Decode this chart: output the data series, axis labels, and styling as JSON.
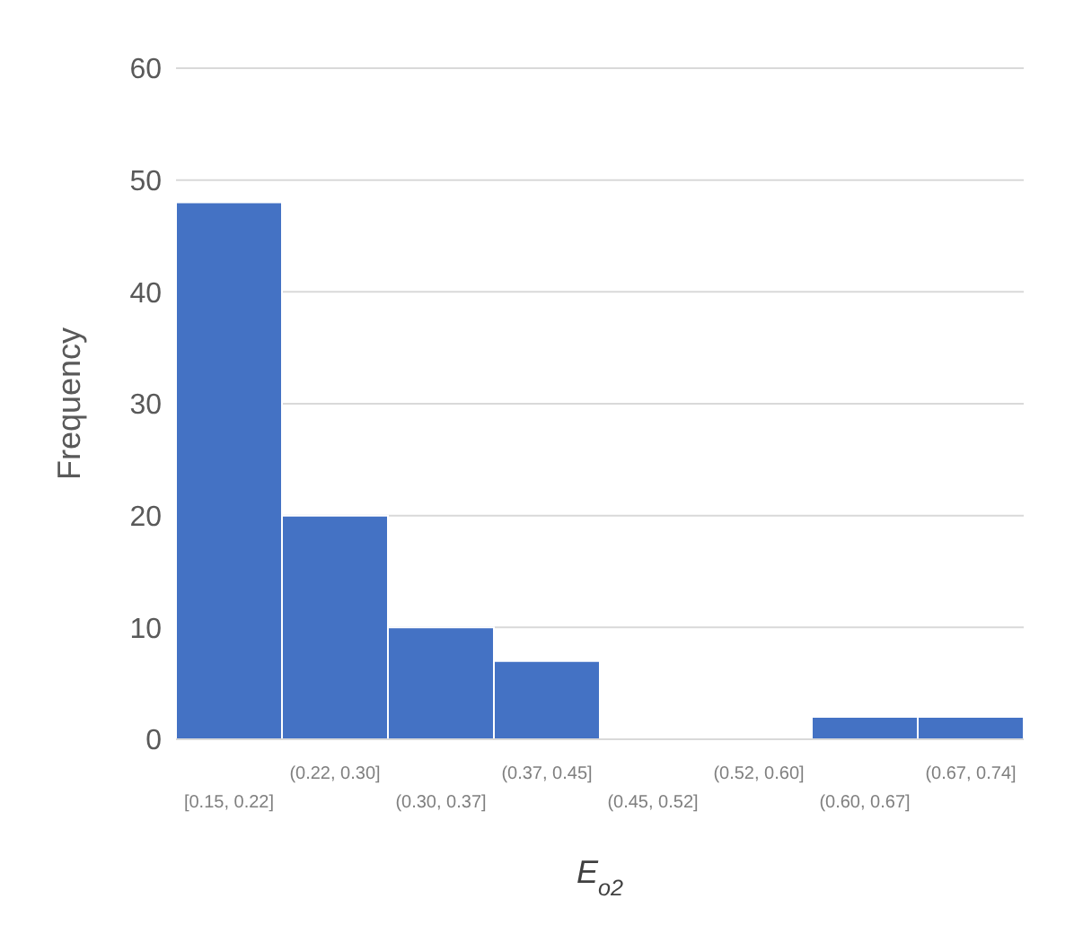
{
  "chart_data": {
    "type": "bar",
    "xlabel": "E$_{o2}$",
    "ylabel": "Frequency",
    "categories": [
      "[0.15, 0.22]",
      "(0.22, 0.30]",
      "(0.30, 0.37]",
      "(0.37, 0.45]",
      "(0.45, 0.52]",
      "(0.52, 0.60]",
      "(0.60, 0.67]",
      "(0.67, 0.74]"
    ],
    "values": [
      48,
      20,
      10,
      7,
      0,
      0,
      2,
      2
    ],
    "color": "#4472c4",
    "ylim": [
      0,
      60
    ],
    "yticks": [
      0,
      10,
      20,
      30,
      40,
      50,
      60
    ],
    "grid": "y"
  }
}
